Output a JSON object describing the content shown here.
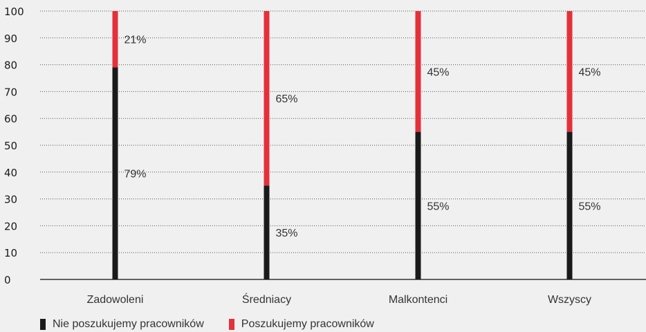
{
  "chart_data": {
    "type": "bar",
    "stacked": true,
    "orientation": "vertical",
    "categories": [
      "Zadowoleni",
      "Średniacy",
      "Malkontenci",
      "Wszyscy"
    ],
    "series": [
      {
        "name": "Nie poszukujemy pracowników",
        "values": [
          79,
          35,
          55,
          55
        ],
        "labels": [
          "79%",
          "35%",
          "55%",
          "55%"
        ],
        "color": "#1a1a1a"
      },
      {
        "name": "Poszukujemy pracowników",
        "values": [
          21,
          65,
          45,
          45
        ],
        "labels": [
          "21%",
          "65%",
          "45%",
          "45%"
        ],
        "color": "#e4303a"
      }
    ],
    "ylim": [
      0,
      100
    ],
    "yticks": [
      "0",
      "10",
      "20",
      "30",
      "40",
      "50",
      "60",
      "70",
      "80",
      "90",
      "100"
    ],
    "grid": true,
    "grid_style": "dotted",
    "legend_position": "bottom-left",
    "title": "",
    "xlabel": "",
    "ylabel": ""
  }
}
